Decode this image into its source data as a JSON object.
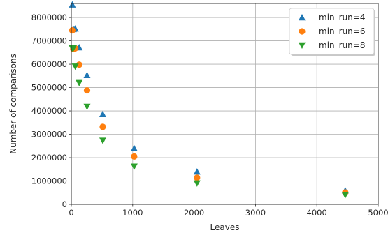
{
  "chart_data": {
    "type": "scatter",
    "title": "",
    "xlabel": "Leaves",
    "ylabel": "Number of comparisons",
    "xlim": [
      0,
      5000
    ],
    "ylim": [
      0,
      8600000
    ],
    "xticks": [
      0,
      1000,
      2000,
      3000,
      4000,
      5000
    ],
    "xtick_labels": [
      "0",
      "1000",
      "2000",
      "3000",
      "4000",
      "5000"
    ],
    "yticks": [
      0,
      1000000,
      2000000,
      3000000,
      4000000,
      5000000,
      6000000,
      7000000,
      8000000
    ],
    "ytick_labels": [
      "0",
      "1000000",
      "2000000",
      "3000000",
      "4000000",
      "5000000",
      "6000000",
      "7000000",
      "8000000"
    ],
    "grid": true,
    "legend_position": "top-right",
    "series": [
      {
        "name": "min_run=4",
        "marker": "triangle-up",
        "color": "#1f77b4",
        "x": [
          16,
          32,
          64,
          128,
          256,
          512,
          1024,
          2048,
          4463
        ],
        "y": [
          8550000,
          7500000,
          7520000,
          6720000,
          5530000,
          3860000,
          2400000,
          1400000,
          590000
        ]
      },
      {
        "name": "min_run=6",
        "marker": "circle",
        "color": "#ff7f0e",
        "x": [
          16,
          32,
          64,
          128,
          256,
          512,
          1024,
          2048,
          4463
        ],
        "y": [
          7450000,
          6650000,
          6680000,
          5980000,
          4880000,
          3320000,
          2050000,
          1140000,
          510000
        ]
      },
      {
        "name": "min_run=8",
        "marker": "triangle-down",
        "color": "#2ca02c",
        "x": [
          16,
          32,
          64,
          128,
          256,
          512,
          1024,
          2048,
          4463
        ],
        "y": [
          6680000,
          6680000,
          5900000,
          5200000,
          4180000,
          2730000,
          1620000,
          900000,
          400000
        ]
      }
    ]
  }
}
